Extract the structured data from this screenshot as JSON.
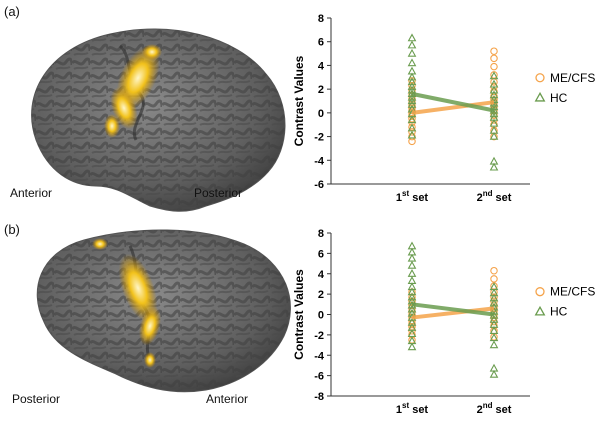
{
  "panels": [
    {
      "label": "(a)",
      "brain_labels": {
        "left": "Anterior",
        "right": "Posterior"
      }
    },
    {
      "label": "(b)",
      "brain_labels": {
        "left": "Posterior",
        "right": "Anterior"
      }
    }
  ],
  "colors": {
    "mecfs": "#f5a34a",
    "hc": "#6a9c4f",
    "cortex": "#6b6b6b",
    "activation": "#f2c21b"
  },
  "chart_data": [
    {
      "type": "scatter",
      "title": "",
      "ylabel": "Contrast Values",
      "ylim": [
        -6,
        8
      ],
      "yticks": [
        -6,
        -4,
        -2,
        0,
        2,
        4,
        6,
        8
      ],
      "categories": [
        {
          "base": "1",
          "sup": "st",
          "rest": " set"
        },
        {
          "base": "2",
          "sup": "nd",
          "rest": " set"
        }
      ],
      "legend": {
        "position": "right"
      },
      "series": [
        {
          "name": "ME/CFS",
          "marker": "circle",
          "means": [
            0.0,
            0.9
          ],
          "points": [
            [
              -2.4,
              -2.0,
              -1.6,
              -1.2,
              -0.8,
              -0.5,
              -0.2,
              0.0,
              0.2,
              0.4,
              0.6,
              0.9,
              1.2,
              1.5,
              1.9,
              2.3,
              2.7
            ],
            [
              -2.0,
              -1.5,
              -1.0,
              -0.6,
              -0.2,
              0.2,
              0.5,
              0.8,
              1.1,
              1.4,
              1.8,
              2.2,
              2.6,
              3.2,
              3.9,
              4.6,
              5.2
            ]
          ]
        },
        {
          "name": "HC",
          "marker": "triangle",
          "means": [
            1.6,
            0.2
          ],
          "points": [
            [
              -1.9,
              -1.3,
              -0.6,
              -0.1,
              0.3,
              0.7,
              1.0,
              1.3,
              1.6,
              1.9,
              2.2,
              2.6,
              3.0,
              3.5,
              4.2,
              5.0,
              5.7,
              6.3
            ],
            [
              -4.6,
              -4.1,
              -2.0,
              -1.5,
              -0.9,
              -0.4,
              -0.1,
              0.2,
              0.5,
              0.8,
              1.1,
              1.5,
              1.9,
              2.4,
              3.1
            ]
          ]
        }
      ]
    },
    {
      "type": "scatter",
      "title": "",
      "ylabel": "Contrast Values",
      "ylim": [
        -8,
        8
      ],
      "yticks": [
        -8,
        -6,
        -4,
        -2,
        0,
        2,
        4,
        6,
        8
      ],
      "categories": [
        {
          "base": "1",
          "sup": "st",
          "rest": " set"
        },
        {
          "base": "2",
          "sup": "nd",
          "rest": " set"
        }
      ],
      "legend": {
        "position": "right"
      },
      "series": [
        {
          "name": "ME/CFS",
          "marker": "circle",
          "means": [
            -0.3,
            0.6
          ],
          "points": [
            [
              -2.5,
              -2.0,
              -1.6,
              -1.2,
              -0.9,
              -0.6,
              -0.3,
              0.0,
              0.3,
              0.6,
              0.9,
              1.3,
              1.7,
              2.2
            ],
            [
              -2.2,
              -1.6,
              -1.1,
              -0.7,
              -0.3,
              0.0,
              0.3,
              0.6,
              0.9,
              1.3,
              1.7,
              2.2,
              2.8,
              3.5,
              4.3
            ]
          ]
        },
        {
          "name": "HC",
          "marker": "triangle",
          "means": [
            1.0,
            0.0
          ],
          "points": [
            [
              -3.2,
              -2.6,
              -1.9,
              -1.3,
              -0.8,
              -0.3,
              0.1,
              0.5,
              0.9,
              1.3,
              1.7,
              2.2,
              2.7,
              3.3,
              4.0,
              4.8,
              5.5,
              6.1,
              6.7
            ],
            [
              -5.9,
              -5.3,
              -3.0,
              -2.3,
              -1.6,
              -1.0,
              -0.5,
              -0.1,
              0.3,
              0.7,
              1.1,
              1.6,
              2.1,
              2.7
            ]
          ]
        }
      ]
    }
  ]
}
